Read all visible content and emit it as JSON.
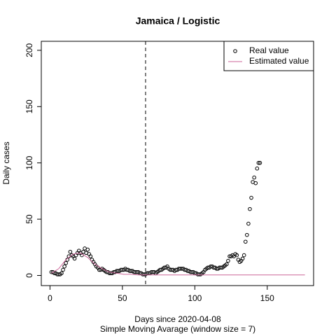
{
  "chart_data": {
    "type": "scatter_line",
    "title": "Jamaica / Logistic",
    "x_label": "Days since 2020-04-08",
    "subtitle": "Simple Moving Avarage (window size = 7)",
    "y_label": "Daily cases",
    "xlim": [
      -6,
      182
    ],
    "ylim": [
      -9,
      208
    ],
    "xticks": [
      0,
      50,
      100,
      150
    ],
    "yticks": [
      0,
      50,
      100,
      150,
      200
    ],
    "vline": 66,
    "legend": "topright",
    "series": [
      {
        "name": "Real value",
        "color": "#000000",
        "style": "points",
        "x": [
          1,
          2,
          3,
          4,
          5,
          6,
          7,
          8,
          9,
          10,
          11,
          12,
          13,
          14,
          15,
          16,
          17,
          18,
          19,
          20,
          21,
          22,
          23,
          24,
          25,
          26,
          27,
          28,
          29,
          30,
          31,
          32,
          33,
          34,
          35,
          36,
          37,
          38,
          39,
          40,
          41,
          42,
          43,
          44,
          45,
          46,
          47,
          48,
          49,
          50,
          51,
          52,
          53,
          54,
          55,
          56,
          57,
          58,
          59,
          60,
          61,
          62,
          63,
          64,
          65,
          66,
          67,
          68,
          69,
          70,
          71,
          72,
          73,
          74,
          75,
          76,
          77,
          78,
          79,
          80,
          81,
          82,
          83,
          84,
          85,
          86,
          87,
          88,
          89,
          90,
          91,
          92,
          93,
          94,
          95,
          96,
          97,
          98,
          99,
          100,
          101,
          102,
          103,
          104,
          105,
          106,
          107,
          108,
          109,
          110,
          111,
          112,
          113,
          114,
          115,
          116,
          117,
          118,
          119,
          120,
          121,
          122,
          123,
          124,
          125,
          126,
          127,
          128,
          129,
          130,
          131,
          132,
          133,
          134,
          135,
          136,
          137,
          138,
          139,
          140,
          141,
          142,
          143,
          144,
          145
        ],
        "values": [
          3,
          3,
          2,
          2,
          1,
          1,
          1,
          2,
          5,
          8,
          11,
          14,
          17,
          21,
          18,
          17,
          15,
          18,
          20,
          22,
          20,
          18,
          21,
          24,
          20,
          23,
          19,
          17,
          14,
          12,
          10,
          8,
          7,
          5,
          5,
          6,
          5,
          4,
          3,
          3,
          2,
          2,
          2,
          3,
          3,
          4,
          4,
          4,
          5,
          5,
          5,
          6,
          5,
          5,
          4,
          4,
          4,
          3,
          3,
          3,
          3,
          2,
          2,
          1,
          1,
          1,
          2,
          2,
          2,
          3,
          3,
          3,
          2,
          3,
          4,
          5,
          5,
          6,
          7,
          7,
          8,
          6,
          5,
          5,
          5,
          4,
          5,
          5,
          6,
          6,
          6,
          6,
          5,
          5,
          4,
          4,
          3,
          3,
          3,
          2,
          2,
          1,
          1,
          1,
          2,
          3,
          5,
          6,
          7,
          7,
          8,
          8,
          7,
          7,
          6,
          6,
          7,
          7,
          7,
          8,
          9,
          10,
          13,
          17,
          17,
          18,
          17,
          19,
          18,
          14,
          12,
          13,
          15,
          18,
          30,
          36,
          46,
          59,
          69,
          83,
          87,
          82,
          95,
          100,
          100
        ]
      },
      {
        "name": "Estimated value",
        "color": "#cc6699",
        "style": "line",
        "x": [
          1,
          6,
          11,
          16,
          21,
          26,
          31,
          36,
          41,
          46,
          51,
          56,
          61,
          66,
          71,
          76,
          81,
          86,
          91,
          96,
          101,
          106,
          111,
          116,
          121,
          126,
          131,
          136,
          141,
          146,
          151,
          156,
          161,
          166,
          171,
          176
        ],
        "values": [
          2,
          6,
          14,
          19,
          20,
          16,
          10,
          6,
          3,
          2,
          1,
          1,
          0.5,
          0.5,
          0.5,
          0.5,
          0.5,
          0.5,
          0.5,
          0.5,
          0.5,
          0.5,
          0.5,
          0.5,
          0.5,
          0.5,
          0.5,
          0.5,
          0.5,
          0.5,
          0.5,
          0.5,
          0.5,
          0.5,
          0.5,
          0.5
        ]
      }
    ]
  }
}
